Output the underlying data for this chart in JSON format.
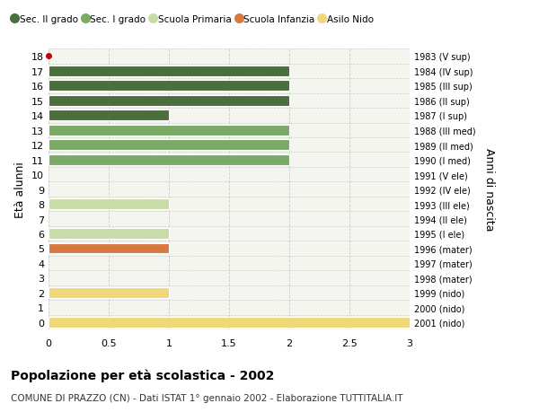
{
  "ages": [
    18,
    17,
    16,
    15,
    14,
    13,
    12,
    11,
    10,
    9,
    8,
    7,
    6,
    5,
    4,
    3,
    2,
    1,
    0
  ],
  "right_labels": [
    "1983 (V sup)",
    "1984 (IV sup)",
    "1985 (III sup)",
    "1986 (II sup)",
    "1987 (I sup)",
    "1988 (III med)",
    "1989 (II med)",
    "1990 (I med)",
    "1991 (V ele)",
    "1992 (IV ele)",
    "1993 (III ele)",
    "1994 (II ele)",
    "1995 (I ele)",
    "1996 (mater)",
    "1997 (mater)",
    "1998 (mater)",
    "1999 (nido)",
    "2000 (nido)",
    "2001 (nido)"
  ],
  "values": [
    0,
    2,
    2,
    2,
    1,
    2,
    2,
    2,
    0,
    0,
    1,
    0,
    1,
    1,
    0,
    0,
    1,
    0,
    3
  ],
  "colors": [
    "#4a6e3c",
    "#4a6e3c",
    "#4a6e3c",
    "#4a6e3c",
    "#4a6e3c",
    "#7aaa65",
    "#7aaa65",
    "#7aaa65",
    "#c8dca8",
    "#c8dca8",
    "#c8dca8",
    "#c8dca8",
    "#c8dca8",
    "#d97840",
    "#d97840",
    "#d97840",
    "#f0d878",
    "#f0d878",
    "#f0d878"
  ],
  "legend_labels": [
    "Sec. II grado",
    "Sec. I grado",
    "Scuola Primaria",
    "Scuola Infanzia",
    "Asilo Nido"
  ],
  "legend_colors": [
    "#4a6e3c",
    "#7aaa65",
    "#c8dca8",
    "#d97840",
    "#f0d878"
  ],
  "dot_age": 18,
  "dot_color": "#cc0000",
  "xlim": [
    0,
    3.0
  ],
  "xticks": [
    0,
    0.5,
    1.0,
    1.5,
    2.0,
    2.5,
    3.0
  ],
  "ylabel_left2": "Età alunni",
  "ylabel_right": "Anni di nascita",
  "title": "Popolazione per età scolastica - 2002",
  "subtitle": "COMUNE DI PRAZZO (CN) - Dati ISTAT 1° gennaio 2002 - Elaborazione TUTTITALIA.IT",
  "bg_color": "#ffffff",
  "plot_bg_color": "#f5f5f0",
  "bar_height": 0.72,
  "grid_color": "#cccccc"
}
